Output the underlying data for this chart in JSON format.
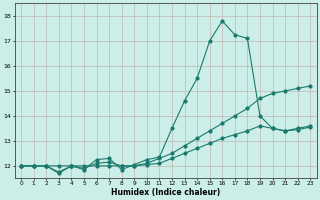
{
  "xlabel": "Humidex (Indice chaleur)",
  "bg_color": "#cceee8",
  "grid_color": "#c0a8a8",
  "line_color": "#1a7a6e",
  "xlim": [
    -0.5,
    23.5
  ],
  "ylim": [
    11.5,
    18.5
  ],
  "xticks": [
    0,
    1,
    2,
    3,
    4,
    5,
    6,
    7,
    8,
    9,
    10,
    11,
    12,
    13,
    14,
    15,
    16,
    17,
    18,
    19,
    20,
    21,
    22,
    23
  ],
  "yticks": [
    12,
    13,
    14,
    15,
    16,
    17,
    18
  ],
  "series1_x": [
    0,
    1,
    2,
    3,
    4,
    5,
    6,
    7,
    8,
    9,
    10,
    11,
    12,
    13,
    14,
    15,
    16,
    17,
    18,
    19,
    20,
    21,
    22,
    23
  ],
  "series1_y": [
    12.0,
    12.0,
    12.0,
    11.7,
    12.0,
    11.85,
    12.25,
    12.3,
    11.85,
    12.05,
    12.25,
    12.35,
    13.5,
    14.6,
    15.5,
    17.0,
    17.8,
    17.25,
    17.1,
    14.0,
    13.5,
    13.4,
    13.5,
    13.6
  ],
  "series2_x": [
    0,
    1,
    2,
    3,
    4,
    5,
    6,
    7,
    8,
    9,
    10,
    11,
    12,
    13,
    14,
    15,
    16,
    17,
    18,
    19,
    20,
    21,
    22,
    23
  ],
  "series2_y": [
    12.0,
    12.0,
    12.0,
    12.0,
    12.0,
    12.0,
    12.0,
    12.0,
    12.0,
    12.0,
    12.1,
    12.3,
    12.5,
    12.8,
    13.1,
    13.4,
    13.7,
    14.0,
    14.3,
    14.7,
    14.9,
    15.0,
    15.1,
    15.2
  ],
  "series3_x": [
    0,
    1,
    2,
    3,
    4,
    5,
    6,
    7,
    8,
    9,
    10,
    11,
    12,
    13,
    14,
    15,
    16,
    17,
    18,
    19,
    20,
    21,
    22,
    23
  ],
  "series3_y": [
    12.0,
    12.0,
    12.0,
    11.75,
    12.0,
    11.9,
    12.1,
    12.15,
    12.0,
    12.0,
    12.05,
    12.1,
    12.3,
    12.5,
    12.7,
    12.9,
    13.1,
    13.25,
    13.4,
    13.6,
    13.5,
    13.4,
    13.45,
    13.55
  ]
}
